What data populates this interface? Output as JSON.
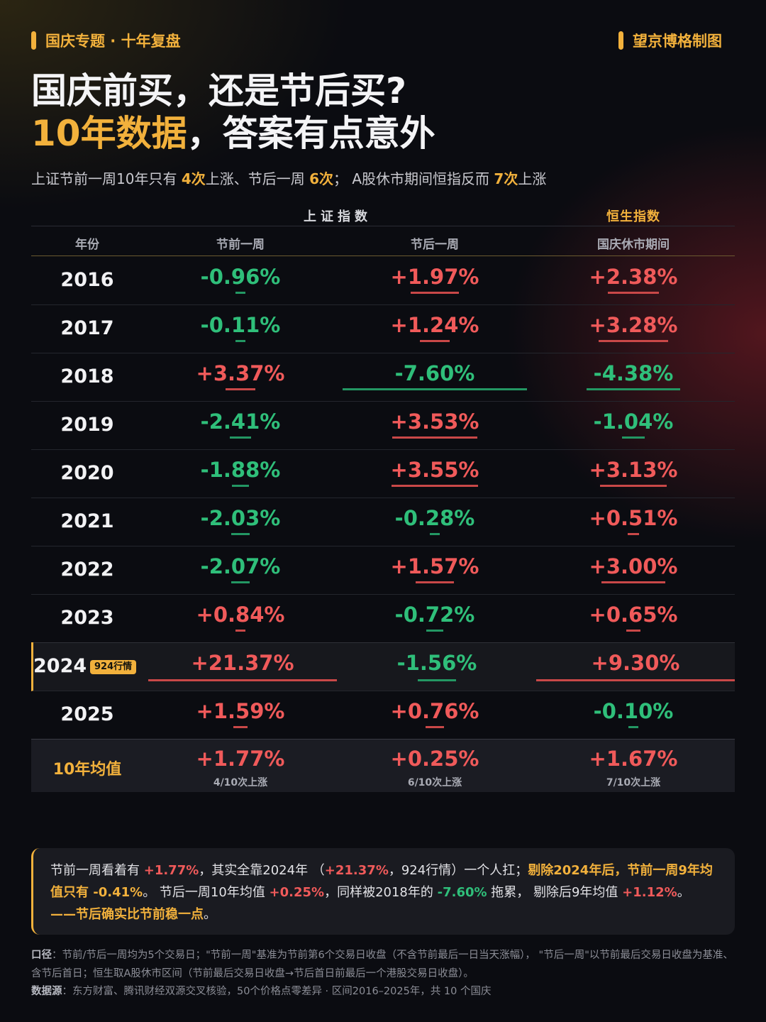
{
  "header": {
    "topic": "国庆专题 · 十年复盘",
    "brand": "望京博格制图",
    "title_line1": "国庆前买，还是节后买?",
    "title_line2_highlight": "10年数据",
    "title_line2_rest": "，答案有点意外",
    "subtitle": {
      "p1": "上证节前一周10年只有 ",
      "b1": "4次",
      "p2": "上涨、节后一周 ",
      "b2": "6次",
      "p3": "；  A股休市期间恒指反而 ",
      "b3": "7次",
      "p4": "上涨"
    },
    "colors": {
      "accent": "#f2b13c",
      "up": "#f05a5a",
      "down": "#2fbf7a"
    }
  },
  "table": {
    "group_shanghai": "上证指数",
    "group_hsi": "恒生指数",
    "col_year": "年份",
    "col_pre": "节前一周",
    "col_post": "节后一周",
    "col_hsi": "国庆休市期间",
    "rows": [
      {
        "year": "2016",
        "pre": "-0.96%",
        "post": "+1.97%",
        "hsi": "+2.38%"
      },
      {
        "year": "2017",
        "pre": "-0.11%",
        "post": "+1.24%",
        "hsi": "+3.28%"
      },
      {
        "year": "2018",
        "pre": "+3.37%",
        "post": "-7.60%",
        "hsi": "-4.38%"
      },
      {
        "year": "2019",
        "pre": "-2.41%",
        "post": "+3.53%",
        "hsi": "-1.04%"
      },
      {
        "year": "2020",
        "pre": "-1.88%",
        "post": "+3.55%",
        "hsi": "+3.13%"
      },
      {
        "year": "2021",
        "pre": "-2.03%",
        "post": "-0.28%",
        "hsi": "+0.51%"
      },
      {
        "year": "2022",
        "pre": "-2.07%",
        "post": "+1.57%",
        "hsi": "+3.00%"
      },
      {
        "year": "2023",
        "pre": "+0.84%",
        "post": "-0.72%",
        "hsi": "+0.65%"
      },
      {
        "year": "2024",
        "pre": "+21.37%",
        "post": "-1.56%",
        "hsi": "+9.30%",
        "badge": "924行情"
      },
      {
        "year": "2025",
        "pre": "+1.59%",
        "post": "+0.76%",
        "hsi": "-0.10%"
      }
    ],
    "average": {
      "label": "10年均值",
      "pre": "+1.77%",
      "pre_sub": "4/10次上涨",
      "post": "+0.25%",
      "post_sub": "6/10次上涨",
      "hsi": "+1.67%",
      "hsi_sub": "7/10次上涨"
    }
  },
  "note": {
    "t1": "节前一周看着有 ",
    "v1": "+1.77%",
    "t2": "，其实全靠2024年 （",
    "v2": "+21.37%",
    "t3": "，924行情）一个人扛；",
    "o1": "剔除2024年后，节前一周9年均值只有 -0.41%",
    "t4": "。 节后一周10年均值 ",
    "v3": "+0.25%",
    "t5": "，同样被2018年的 ",
    "v4": "-7.60%",
    "t6": " 拖累， 剔除后9年均值 ",
    "v5": "+1.12%",
    "o2": "——节后确实比节前稳一点",
    "t7": "。"
  },
  "footer": {
    "label1": "口径",
    "text1": "：节前/节后一周均为5个交易日；\"节前一周\"基准为节前第6个交易日收盘（不含节前最后一日当天涨幅）， \"节后一周\"以节前最后交易日收盘为基准、含节后首日；恒生取A股休市区间（节前最后交易日收盘→节后首日前最后一个港股交易日收盘）。",
    "label2": "数据源",
    "text2": "：东方财富、腾讯财经双源交叉核验，50个价格点零差异 · 区间2016–2025年，共 10 个国庆"
  }
}
